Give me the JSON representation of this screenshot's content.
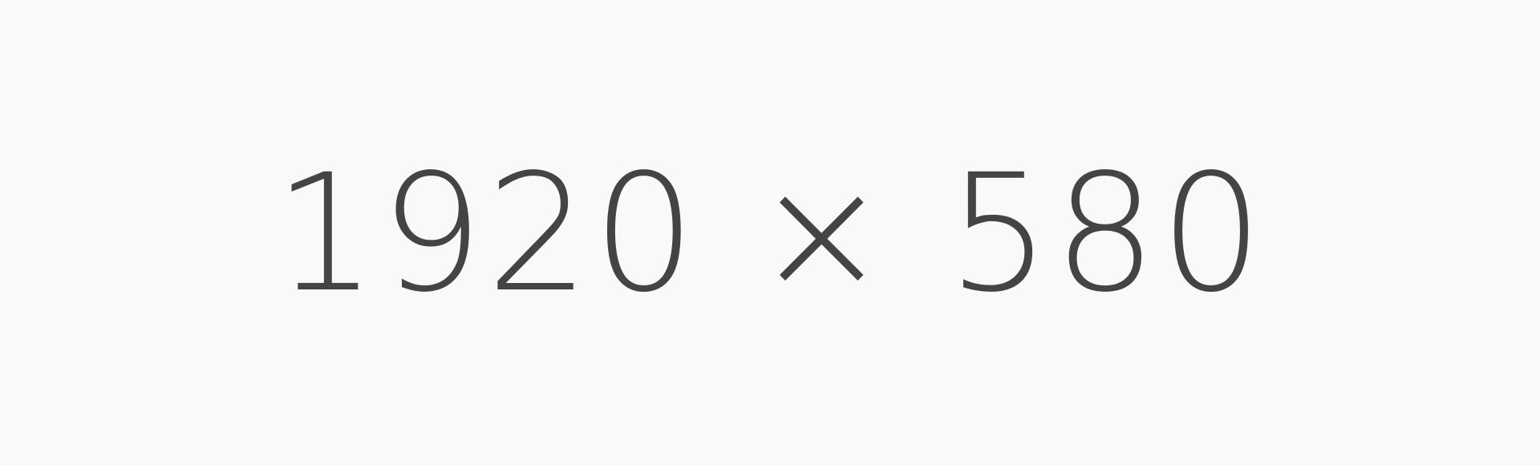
{
  "placeholder": {
    "text": "1920 × 580"
  },
  "colors": {
    "background": "#F9F9F9",
    "text": "#444444"
  }
}
